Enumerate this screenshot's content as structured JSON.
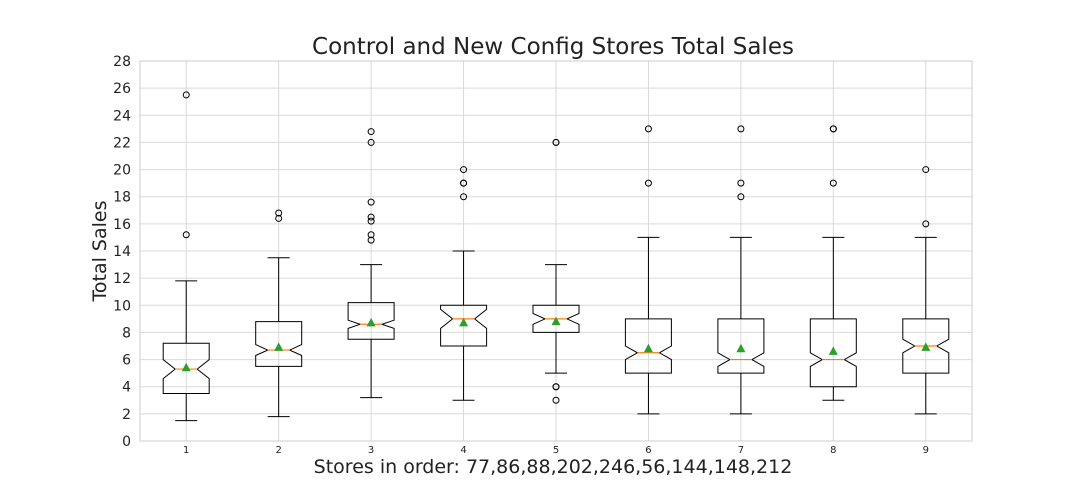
{
  "chart_data": {
    "type": "box",
    "title": "Control and New Config Stores Total Sales",
    "xlabel": "Stores in order: 77,86,88,202,246,56,144,148,212",
    "ylabel": "Total Sales",
    "ylim": [
      0,
      28
    ],
    "yticks": [
      0,
      2,
      4,
      6,
      8,
      10,
      12,
      14,
      16,
      18,
      20,
      22,
      24,
      26,
      28
    ],
    "categories": [
      "1",
      "2",
      "3",
      "4",
      "5",
      "6",
      "7",
      "8",
      "9"
    ],
    "grid": true,
    "notched": true,
    "show_means": true,
    "colors": {
      "box": "#000000",
      "median": "#ff7f0e",
      "mean": "#2ca02c",
      "grid": "#d9d9d9",
      "axes": "#cccccc"
    },
    "boxes": [
      {
        "whislo": 1.5,
        "q1": 3.5,
        "med": 5.3,
        "q3": 7.2,
        "whishi": 11.8,
        "mean": 5.4,
        "notch_lo": 4.6,
        "notch_hi": 6.0,
        "fliers": [
          15.2,
          25.5
        ]
      },
      {
        "whislo": 1.8,
        "q1": 5.5,
        "med": 6.7,
        "q3": 8.8,
        "whishi": 13.5,
        "mean": 6.9,
        "notch_lo": 6.3,
        "notch_hi": 7.1,
        "fliers": [
          16.4,
          16.8
        ]
      },
      {
        "whislo": 3.2,
        "q1": 7.5,
        "med": 8.6,
        "q3": 10.2,
        "whishi": 13.0,
        "mean": 8.7,
        "notch_lo": 8.3,
        "notch_hi": 8.9,
        "fliers": [
          14.8,
          15.2,
          16.2,
          16.5,
          17.6,
          22.0,
          22.8
        ]
      },
      {
        "whislo": 3.0,
        "q1": 7.0,
        "med": 9.0,
        "q3": 10.0,
        "whishi": 14.0,
        "mean": 8.7,
        "notch_lo": 8.3,
        "notch_hi": 9.7,
        "fliers": [
          18.0,
          19.0,
          19.0,
          20.0
        ]
      },
      {
        "whislo": 5.0,
        "q1": 8.0,
        "med": 9.0,
        "q3": 10.0,
        "whishi": 13.0,
        "mean": 8.8,
        "notch_lo": 8.6,
        "notch_hi": 9.4,
        "fliers": [
          3.0,
          4.0,
          4.0,
          22.0,
          22.0
        ]
      },
      {
        "whislo": 2.0,
        "q1": 5.0,
        "med": 6.5,
        "q3": 9.0,
        "whishi": 15.0,
        "mean": 6.8,
        "notch_lo": 6.0,
        "notch_hi": 7.0,
        "fliers": [
          19.0,
          23.0
        ]
      },
      {
        "whislo": 2.0,
        "q1": 5.0,
        "med": 6.0,
        "q3": 9.0,
        "whishi": 15.0,
        "mean": 6.8,
        "notch_lo": 5.5,
        "notch_hi": 6.5,
        "fliers": [
          18.0,
          19.0,
          23.0
        ]
      },
      {
        "whislo": 3.0,
        "q1": 4.0,
        "med": 6.0,
        "q3": 9.0,
        "whishi": 15.0,
        "mean": 6.6,
        "notch_lo": 5.5,
        "notch_hi": 6.5,
        "fliers": [
          19.0,
          23.0,
          23.0
        ]
      },
      {
        "whislo": 2.0,
        "q1": 5.0,
        "med": 7.0,
        "q3": 9.0,
        "whishi": 15.0,
        "mean": 6.9,
        "notch_lo": 6.5,
        "notch_hi": 7.5,
        "fliers": [
          16.0,
          20.0
        ]
      }
    ]
  }
}
